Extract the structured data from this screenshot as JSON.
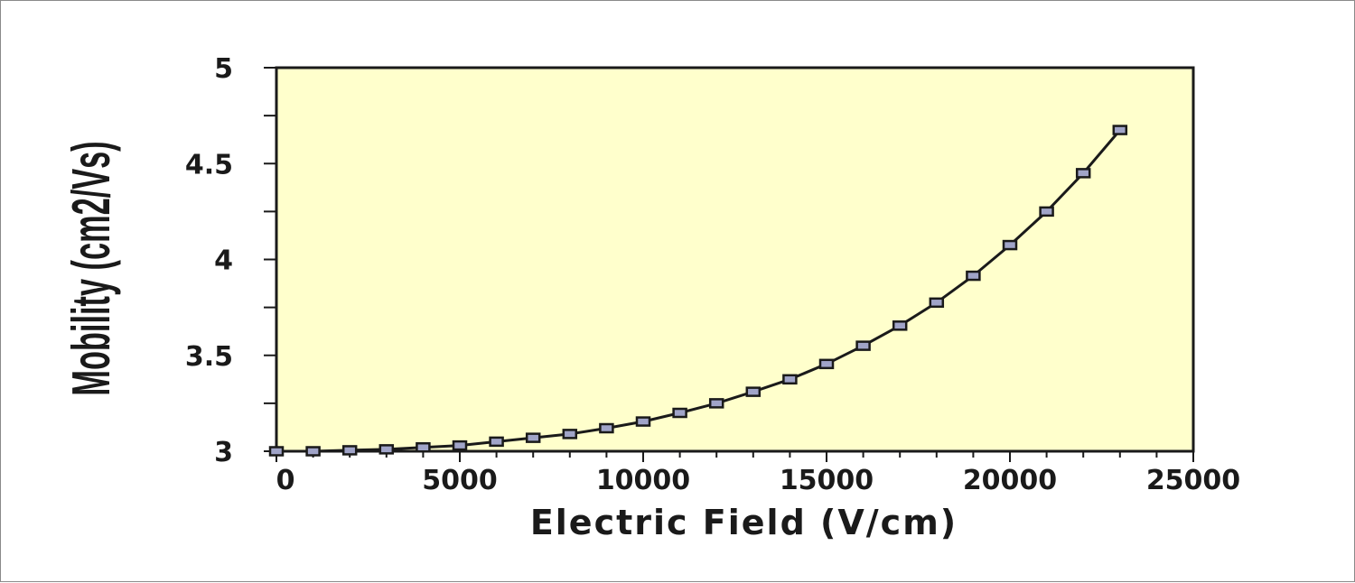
{
  "chart_data": {
    "type": "line",
    "title": "",
    "xlabel": "Electric Field (V/cm)",
    "ylabel": "Mobility (cm2/Vs)",
    "xlim": [
      0,
      25000
    ],
    "ylim": [
      3,
      5
    ],
    "x_ticks": [
      0,
      5000,
      10000,
      15000,
      20000,
      25000
    ],
    "y_ticks": [
      3,
      3.5,
      4,
      4.5,
      5
    ],
    "x_tick_labels": [
      "0",
      "5000",
      "10000",
      "15000",
      "20000",
      "25000"
    ],
    "y_tick_labels": [
      "3",
      "3.5",
      "4",
      "4.5",
      "5"
    ],
    "grid": false,
    "legend": "none",
    "plot_background": "#ffffcc",
    "line_color": "#1a1a1a",
    "marker": "square",
    "marker_color": "#a0a4c8",
    "series": [
      {
        "x": [
          0,
          1000,
          2000,
          3000,
          4000,
          5000,
          6000,
          7000,
          8000,
          9000,
          10000,
          11000,
          12000,
          13000,
          14000,
          15000,
          16000,
          17000,
          18000,
          19000,
          20000,
          21000,
          22000,
          23000
        ],
        "y": [
          3.0,
          3.0,
          3.005,
          3.01,
          3.02,
          3.03,
          3.05,
          3.07,
          3.09,
          3.12,
          3.155,
          3.2,
          3.25,
          3.31,
          3.375,
          3.455,
          3.55,
          3.655,
          3.775,
          3.915,
          4.075,
          4.25,
          4.45,
          4.675
        ]
      }
    ]
  }
}
